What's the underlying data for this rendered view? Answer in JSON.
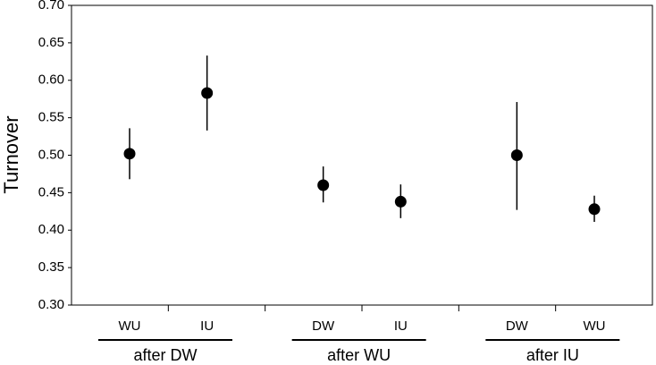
{
  "chart_data": {
    "type": "dot",
    "y_label": "Turnover",
    "color": "#000000",
    "ylim": [
      0.3,
      0.7
    ],
    "yticks": [
      {
        "value": 0.3,
        "label": "0.30"
      },
      {
        "value": 0.35,
        "label": "0.35"
      },
      {
        "value": 0.4,
        "label": "0.40"
      },
      {
        "value": 0.45,
        "label": "0.45"
      },
      {
        "value": 0.5,
        "label": "0.50"
      },
      {
        "value": 0.55,
        "label": "0.55"
      },
      {
        "value": 0.6,
        "label": "0.60"
      },
      {
        "value": 0.65,
        "label": "0.65"
      },
      {
        "value": 0.7,
        "label": "0.70"
      }
    ],
    "grid": false,
    "groups": [
      {
        "label": "after DW",
        "categories": [
          "WU",
          "IU"
        ],
        "values": [
          0.502,
          0.583
        ],
        "upper": [
          0.536,
          0.633
        ],
        "lower": [
          0.468,
          0.533
        ]
      },
      {
        "label": "after WU",
        "categories": [
          "DW",
          "IU"
        ],
        "values": [
          0.46,
          0.438
        ],
        "upper": [
          0.485,
          0.461
        ],
        "lower": [
          0.437,
          0.416
        ]
      },
      {
        "label": "after IU",
        "categories": [
          "DW",
          "WU"
        ],
        "values": [
          0.5,
          0.428
        ],
        "upper": [
          0.571,
          0.446
        ],
        "lower": [
          0.427,
          0.411
        ]
      }
    ]
  }
}
